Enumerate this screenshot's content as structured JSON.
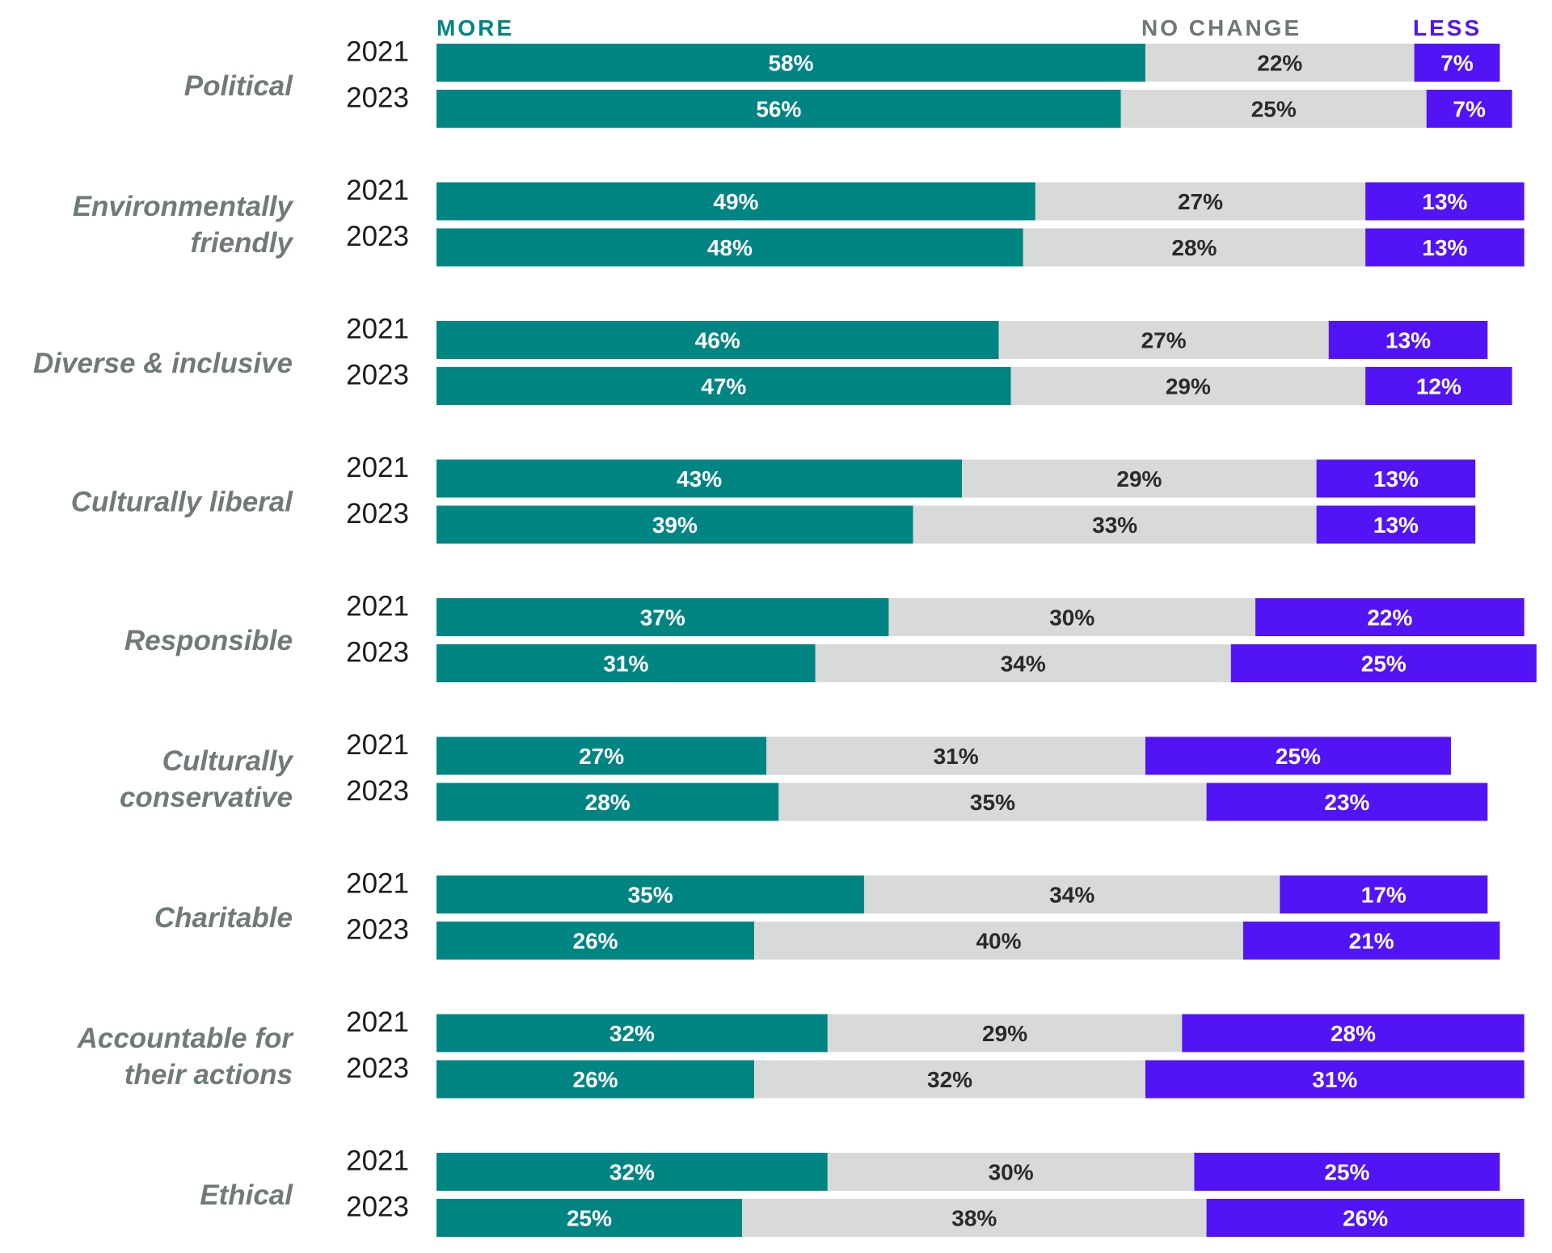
{
  "chart_data": {
    "type": "bar",
    "stacked": true,
    "orientation": "horizontal",
    "legend": [
      {
        "name": "MORE",
        "color": "#008583"
      },
      {
        "name": "NO CHANGE",
        "color": "#6e7776"
      },
      {
        "name": "LESS",
        "color": "#5214f5"
      }
    ],
    "colors": {
      "more": "#008583",
      "no_change": "#d8dada",
      "less": "#5214f5",
      "more_text": "#ffffff",
      "no_change_text": "#2a2a2a",
      "less_text": "#ffffff"
    },
    "categories": [
      {
        "label": [
          "Political"
        ],
        "rows": [
          {
            "year": "2021",
            "more": 58,
            "no_change": 22,
            "less": 7
          },
          {
            "year": "2023",
            "more": 56,
            "no_change": 25,
            "less": 7
          }
        ]
      },
      {
        "label": [
          "Environmentally",
          "friendly"
        ],
        "rows": [
          {
            "year": "2021",
            "more": 49,
            "no_change": 27,
            "less": 13
          },
          {
            "year": "2023",
            "more": 48,
            "no_change": 28,
            "less": 13
          }
        ]
      },
      {
        "label": [
          "Diverse & inclusive"
        ],
        "rows": [
          {
            "year": "2021",
            "more": 46,
            "no_change": 27,
            "less": 13
          },
          {
            "year": "2023",
            "more": 47,
            "no_change": 29,
            "less": 12
          }
        ]
      },
      {
        "label": [
          "Culturally liberal"
        ],
        "rows": [
          {
            "year": "2021",
            "more": 43,
            "no_change": 29,
            "less": 13
          },
          {
            "year": "2023",
            "more": 39,
            "no_change": 33,
            "less": 13
          }
        ]
      },
      {
        "label": [
          "Responsible"
        ],
        "rows": [
          {
            "year": "2021",
            "more": 37,
            "no_change": 30,
            "less": 22
          },
          {
            "year": "2023",
            "more": 31,
            "no_change": 34,
            "less": 25
          }
        ]
      },
      {
        "label": [
          "Culturally",
          "conservative"
        ],
        "rows": [
          {
            "year": "2021",
            "more": 27,
            "no_change": 31,
            "less": 25
          },
          {
            "year": "2023",
            "more": 28,
            "no_change": 35,
            "less": 23
          }
        ]
      },
      {
        "label": [
          "Charitable"
        ],
        "rows": [
          {
            "year": "2021",
            "more": 35,
            "no_change": 34,
            "less": 17
          },
          {
            "year": "2023",
            "more": 26,
            "no_change": 40,
            "less": 21
          }
        ]
      },
      {
        "label": [
          "Accountable for",
          "their actions"
        ],
        "rows": [
          {
            "year": "2021",
            "more": 32,
            "no_change": 29,
            "less": 28
          },
          {
            "year": "2023",
            "more": 26,
            "no_change": 32,
            "less": 31
          }
        ]
      },
      {
        "label": [
          "Ethical"
        ],
        "rows": [
          {
            "year": "2021",
            "more": 32,
            "no_change": 30,
            "less": 25
          },
          {
            "year": "2023",
            "more": 25,
            "no_change": 38,
            "less": 26
          }
        ]
      }
    ]
  }
}
